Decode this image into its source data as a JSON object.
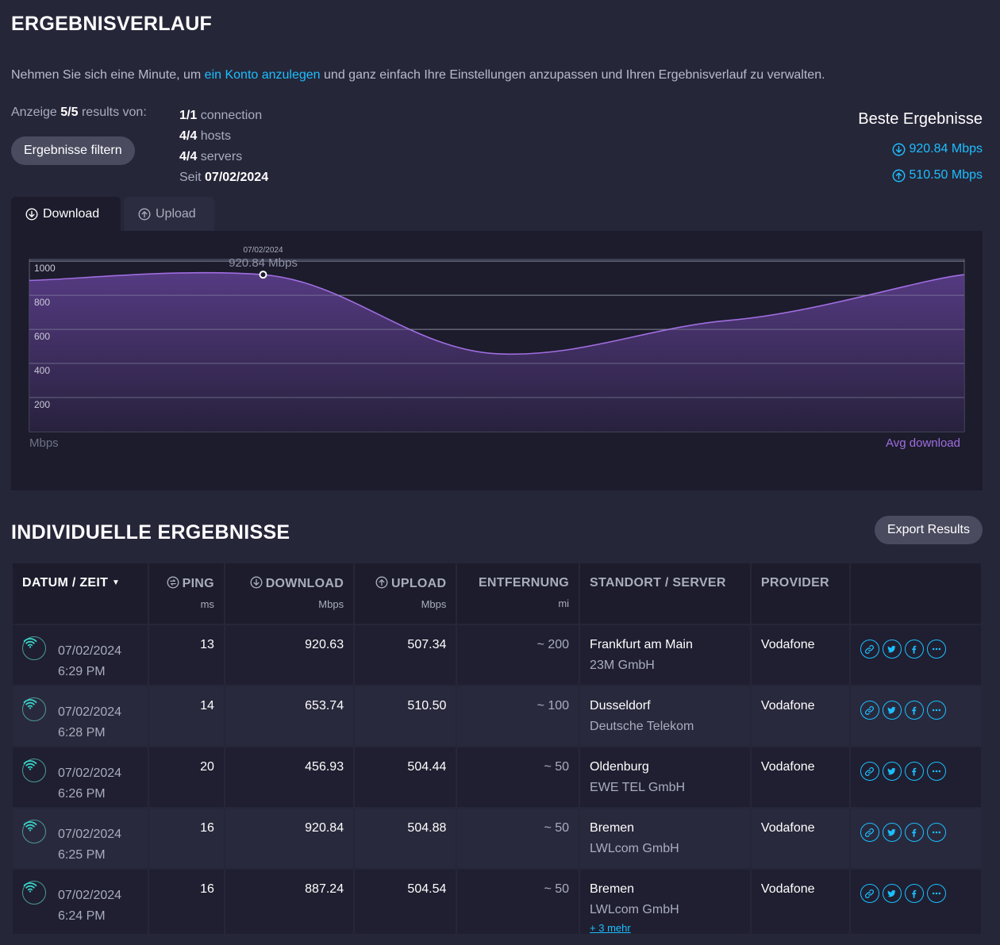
{
  "history": {
    "title": "ERGEBNISVERLAUF",
    "intro_before": "Nehmen Sie sich eine Minute, um ",
    "intro_link": "ein Konto anzulegen",
    "intro_after": " und ganz einfach Ihre Einstellungen anzupassen und Ihren Ergebnisverlauf zu verwalten.",
    "showing_prefix": "Anzeige ",
    "showing_count": "5/5",
    "showing_suffix": " results von:",
    "filter_button": "Ergebnisse filtern",
    "counts": [
      {
        "value": "1/1",
        "label": " connection"
      },
      {
        "value": "4/4",
        "label": " hosts"
      },
      {
        "value": "4/4",
        "label": " servers"
      }
    ],
    "since_label": "Seit ",
    "since_value": "07/02/2024",
    "best_title": "Beste Ergebnisse",
    "best_download": "920.84 Mbps",
    "best_upload": "510.50 Mbps"
  },
  "tabs": [
    {
      "label": "Download",
      "icon": "arrow-down-circle-icon",
      "active": true
    },
    {
      "label": "Upload",
      "icon": "arrow-up-circle-icon",
      "active": false
    }
  ],
  "chart_data": {
    "type": "area",
    "series": [
      {
        "name": "Avg download",
        "x": [
          "07/02/2024 6:24 PM",
          "07/02/2024 6:25 PM",
          "07/02/2024 6:26 PM",
          "07/02/2024 6:28 PM",
          "07/02/2024 6:29 PM"
        ],
        "values": [
          887.24,
          920.84,
          456.93,
          653.74,
          920.63
        ]
      }
    ],
    "ylabel": "Mbps",
    "yticks": [
      200,
      400,
      600,
      800,
      1000
    ],
    "ylim": [
      0,
      1010
    ],
    "grid": true,
    "legend": "bottom-right",
    "highlight": {
      "date": "07/02/2024",
      "label": "920.84 Mbps",
      "index": 1
    },
    "color": "#a06de0"
  },
  "individual": {
    "title": "INDIVIDUELLE ERGEBNISSE",
    "export_button": "Export Results",
    "headers": {
      "datetime": "DATUM / ZEIT",
      "ping": "PING",
      "ping_unit": "ms",
      "download": "DOWNLOAD",
      "download_unit": "Mbps",
      "upload": "UPLOAD",
      "upload_unit": "Mbps",
      "distance": "ENTFERNUNG",
      "distance_unit": "mi",
      "location": "STANDORT / SERVER",
      "provider": "PROVIDER"
    },
    "rows": [
      {
        "date": "07/02/2024",
        "time": "6:29 PM",
        "ping": "13",
        "download": "920.63",
        "upload": "507.34",
        "distance": "~ 200",
        "city": "Frankfurt am Main",
        "server": "23M GmbH",
        "provider": "Vodafone"
      },
      {
        "date": "07/02/2024",
        "time": "6:28 PM",
        "ping": "14",
        "download": "653.74",
        "upload": "510.50",
        "distance": "~ 100",
        "city": "Dusseldorf",
        "server": "Deutsche Telekom",
        "provider": "Vodafone"
      },
      {
        "date": "07/02/2024",
        "time": "6:26 PM",
        "ping": "20",
        "download": "456.93",
        "upload": "504.44",
        "distance": "~ 50",
        "city": "Oldenburg",
        "server": "EWE TEL GmbH",
        "provider": "Vodafone"
      },
      {
        "date": "07/02/2024",
        "time": "6:25 PM",
        "ping": "16",
        "download": "920.84",
        "upload": "504.88",
        "distance": "~ 50",
        "city": "Bremen",
        "server": "LWLcom GmbH",
        "provider": "Vodafone"
      },
      {
        "date": "07/02/2024",
        "time": "6:24 PM",
        "ping": "16",
        "download": "887.24",
        "upload": "504.54",
        "distance": "~ 50",
        "city": "Bremen",
        "server": "LWLcom GmbH",
        "provider": "Vodafone",
        "more": "+ 3 mehr"
      }
    ]
  }
}
